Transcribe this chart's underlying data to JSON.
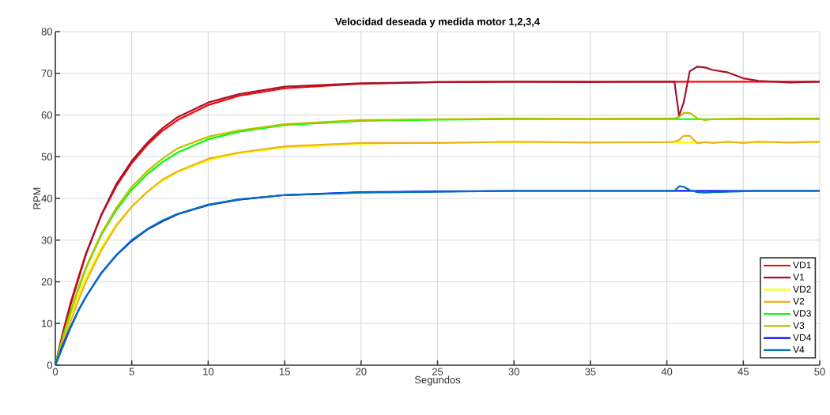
{
  "chart_data": {
    "type": "line",
    "title": "Velocidad deseada y medida motor 1,2,3,4",
    "xlabel": "Segundos",
    "ylabel": "RPM",
    "xlim": [
      0,
      50
    ],
    "ylim": [
      0,
      80
    ],
    "xticks": [
      0,
      5,
      10,
      15,
      20,
      25,
      30,
      35,
      40,
      45,
      50
    ],
    "yticks": [
      0,
      10,
      20,
      30,
      40,
      50,
      60,
      70,
      80
    ],
    "grid": true,
    "legend": "bottom right",
    "line_style": "solid",
    "marker": "none",
    "series": [
      {
        "name": "VD1",
        "color": "#ff0000",
        "x": [
          0,
          0.5,
          1,
          1.5,
          2,
          3,
          4,
          5,
          6,
          7,
          8,
          10,
          12,
          15,
          20,
          25,
          30,
          40,
          50
        ],
        "values": [
          0,
          8,
          15,
          21,
          26.8,
          35.9,
          43,
          48.5,
          52.8,
          56.2,
          58.8,
          62.4,
          64.6,
          66.4,
          67.5,
          67.9,
          68,
          68,
          68
        ]
      },
      {
        "name": "V1",
        "color": "#a2142f",
        "x": [
          0,
          0.5,
          1,
          1.5,
          2,
          3,
          4,
          5,
          6,
          7,
          8,
          10,
          12,
          15,
          20,
          25,
          30,
          35,
          40,
          40.5,
          40.8,
          41.1,
          41.5,
          42,
          42.5,
          43,
          44,
          45,
          46,
          48,
          50
        ],
        "values": [
          0,
          7.5,
          14.5,
          20.5,
          26.5,
          36,
          43.5,
          49,
          53.3,
          56.8,
          59.5,
          63,
          65,
          66.8,
          67.6,
          67.9,
          68,
          67.9,
          68,
          68,
          59.8,
          63,
          70.5,
          71.6,
          71.4,
          70.8,
          70.2,
          68.8,
          68.2,
          67.8,
          68
        ]
      },
      {
        "name": "VD2",
        "color": "#ffff00",
        "x": [
          0,
          0.5,
          1,
          1.5,
          2,
          3,
          4,
          5,
          6,
          7,
          8,
          10,
          12,
          15,
          20,
          25,
          30,
          40,
          50
        ],
        "values": [
          0,
          6.3,
          11.8,
          16.7,
          21,
          28.2,
          33.8,
          38.1,
          41.6,
          44.2,
          46.3,
          49.1,
          50.8,
          52.2,
          53.1,
          53.4,
          53.5,
          53.5,
          53.5
        ]
      },
      {
        "name": "V2",
        "color": "#edb120",
        "x": [
          0,
          0.5,
          1,
          1.5,
          2,
          3,
          4,
          5,
          6,
          7,
          8,
          10,
          12,
          15,
          20,
          25,
          30,
          35,
          40,
          40.5,
          40.8,
          41.1,
          41.5,
          42,
          42.5,
          43,
          44,
          45,
          46,
          48,
          50
        ],
        "values": [
          0,
          5.5,
          10.5,
          15.5,
          20,
          27.5,
          33.5,
          38,
          41.5,
          44.5,
          46.5,
          49.5,
          51,
          52.5,
          53.3,
          53.3,
          53.6,
          53.4,
          53.5,
          53.6,
          54,
          55,
          55,
          53.2,
          53.5,
          53.3,
          53.6,
          53.3,
          53.6,
          53.4,
          53.6
        ]
      },
      {
        "name": "VD3",
        "color": "#00ff00",
        "x": [
          0,
          0.5,
          1,
          1.5,
          2,
          3,
          4,
          5,
          6,
          7,
          8,
          10,
          12,
          15,
          20,
          25,
          30,
          40,
          50
        ],
        "values": [
          0,
          6.9,
          13,
          null,
          23.2,
          31.2,
          37.3,
          42.1,
          45.8,
          48.7,
          51,
          54.2,
          56,
          57.6,
          58.6,
          58.9,
          59,
          59,
          59
        ]
      },
      {
        "name": "V3",
        "color": "#bfbf00",
        "x": [
          0,
          0.5,
          1,
          1.5,
          2,
          3,
          4,
          5,
          6,
          7,
          8,
          10,
          12,
          15,
          20,
          25,
          30,
          35,
          40,
          40.5,
          40.8,
          41.1,
          41.5,
          42,
          42.5,
          43,
          44,
          45,
          46,
          48,
          50
        ],
        "values": [
          0,
          6.5,
          12.5,
          18.5,
          23.5,
          31.5,
          37.8,
          42.8,
          46.5,
          49.5,
          52,
          54.8,
          56.3,
          57.8,
          58.8,
          59,
          59.2,
          59.1,
          59.2,
          59.2,
          59.5,
          60.5,
          60.5,
          59.2,
          58.8,
          59,
          59.1,
          59.2,
          59.1,
          59.2,
          59.2
        ]
      },
      {
        "name": "VD4",
        "color": "#0000ff",
        "x": [
          0,
          0.5,
          1,
          1.5,
          2,
          3,
          4,
          5,
          6,
          7,
          8,
          10,
          12,
          15,
          20,
          25,
          30,
          40,
          50
        ],
        "values": [
          0,
          4.9,
          9.2,
          13.1,
          16.4,
          22.1,
          26.4,
          29.8,
          32.5,
          34.5,
          36.2,
          38.4,
          39.7,
          40.8,
          41.5,
          41.7,
          41.8,
          41.8,
          41.8
        ]
      },
      {
        "name": "V4",
        "color": "#0072bd",
        "x": [
          0,
          0.5,
          1,
          1.5,
          2,
          3,
          4,
          5,
          6,
          7,
          8,
          10,
          12,
          15,
          20,
          25,
          30,
          35,
          40,
          40.5,
          40.8,
          41.1,
          41.5,
          42,
          42.5,
          43,
          44,
          45,
          46,
          48,
          50
        ],
        "values": [
          0,
          4.5,
          9,
          13,
          16.4,
          22,
          26.5,
          30,
          32.6,
          34.7,
          36.3,
          38.5,
          39.8,
          40.8,
          41.4,
          41.6,
          41.8,
          41.8,
          41.8,
          41.8,
          42.9,
          42.8,
          42,
          41.5,
          41.4,
          41.5,
          41.6,
          41.7,
          41.8,
          41.8,
          41.8
        ]
      }
    ]
  }
}
